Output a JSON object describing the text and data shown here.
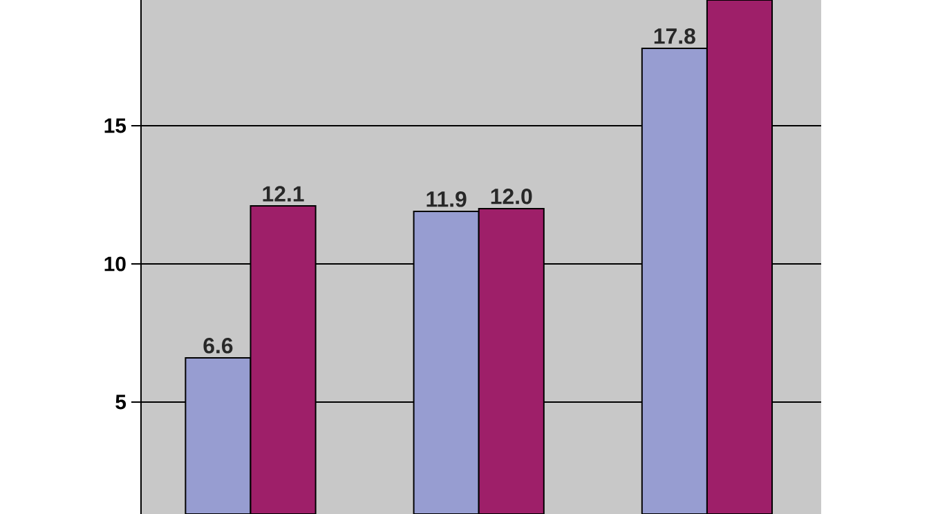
{
  "chart_data": {
    "type": "bar",
    "categories": [
      null,
      null,
      null
    ],
    "series": [
      {
        "color": "#979dd1",
        "values": [
          6.6,
          11.9,
          17.8
        ],
        "value_labels": [
          "6.6",
          "11.9",
          "17.8"
        ]
      },
      {
        "color": "#9e1f69",
        "values": [
          12.1,
          12.0,
          19.55
        ],
        "value_labels": [
          "12.1",
          "12.0",
          null
        ]
      }
    ],
    "ylim": [
      0.95,
      19.55
    ],
    "yticks": [
      5,
      10,
      15
    ],
    "grid": "y",
    "tick_labels": "y"
  }
}
